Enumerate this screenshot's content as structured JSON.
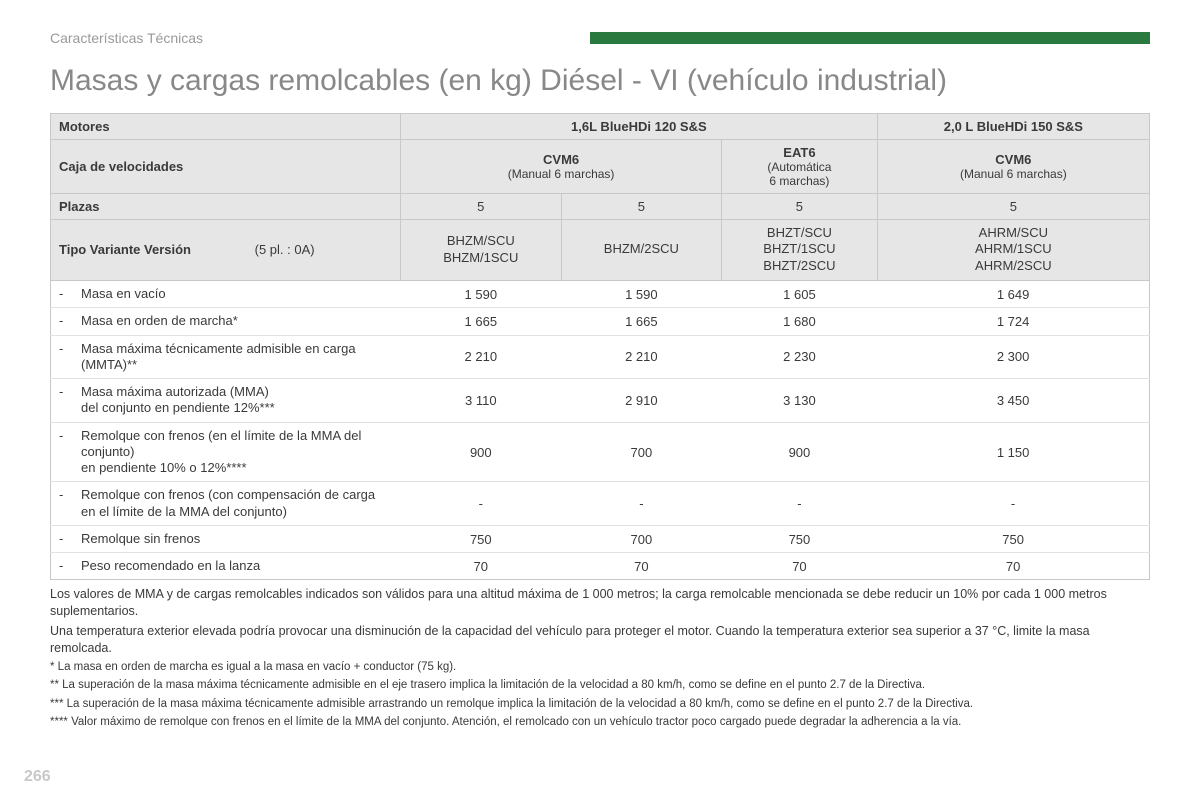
{
  "header": {
    "section_label": "Características Técnicas",
    "green_bar_color": "#2a7a3f"
  },
  "title": "Masas y cargas remolcables (en kg) Diésel - VI (vehículo industrial)",
  "table": {
    "row_labels": {
      "motores": "Motores",
      "caja": "Caja de velocidades",
      "plazas": "Plazas",
      "tvv": "Tipo Variante Versión",
      "tvv_note": "(5 pl. : 0A)"
    },
    "engines": [
      {
        "name": "1,6L BlueHDi 120 S&S",
        "span": 3
      },
      {
        "name": "2,0 L BlueHDi 150 S&S",
        "span": 1
      }
    ],
    "gearboxes": [
      {
        "name": "CVM6",
        "sub": "(Manual 6 marchas)",
        "span": 2
      },
      {
        "name": "EAT6",
        "sub": "(Automática\n6 marchas)",
        "span": 1
      },
      {
        "name": "CVM6",
        "sub": "(Manual 6 marchas)",
        "span": 1
      }
    ],
    "plazas": [
      "5",
      "5",
      "5",
      "5"
    ],
    "tvv": [
      "BHZM/SCU\nBHZM/1SCU",
      "BHZM/2SCU",
      "BHZT/SCU\nBHZT/1SCU\nBHZT/2SCU",
      "AHRM/SCU\nAHRM/1SCU\nAHRM/2SCU"
    ],
    "body_rows": [
      {
        "label": "Masa en vacío",
        "vals": [
          "1 590",
          "1 590",
          "1 605",
          "1 649"
        ]
      },
      {
        "label": "Masa en orden de marcha*",
        "vals": [
          "1 665",
          "1 665",
          "1 680",
          "1 724"
        ]
      },
      {
        "label": "Masa máxima técnicamente admisible en carga (MMTA)**",
        "vals": [
          "2 210",
          "2 210",
          "2 230",
          "2 300"
        ]
      },
      {
        "label": "Masa máxima autorizada (MMA)\ndel conjunto en pendiente 12%***",
        "vals": [
          "3 110",
          "2 910",
          "3 130",
          "3 450"
        ]
      },
      {
        "label": "Remolque con frenos (en el límite de la MMA del conjunto)\nen pendiente 10% o 12%****",
        "vals": [
          "900",
          "700",
          "900",
          "1 150"
        ]
      },
      {
        "label": "Remolque con frenos (con compensación de carga en el límite de la MMA del conjunto)",
        "vals": [
          "-",
          "-",
          "-",
          "-"
        ]
      },
      {
        "label": "Remolque sin frenos",
        "vals": [
          "750",
          "700",
          "750",
          "750"
        ]
      },
      {
        "label": "Peso recomendado en la lanza",
        "vals": [
          "70",
          "70",
          "70",
          "70"
        ]
      }
    ]
  },
  "notes": {
    "p1": "Los valores de MMA y de cargas remolcables indicados son válidos para una altitud máxima de 1 000 metros; la carga remolcable mencionada se debe reducir un 10% por cada 1 000 metros suplementarios.",
    "p2": "Una temperatura exterior elevada podría provocar una disminución de la capacidad del vehículo para proteger el motor. Cuando la temperatura exterior sea superior a 37 °C, limite la masa remolcada.",
    "f1": "* La masa en orden de marcha es igual a la masa en vacío + conductor (75 kg).",
    "f2": "** La superación de la masa máxima técnicamente admisible en el eje trasero implica la limitación de la velocidad a 80 km/h, como se define en el punto 2.7 de la Directiva.",
    "f3": "*** La superación de la masa máxima técnicamente admisible arrastrando un remolque implica la limitación de la velocidad a 80 km/h, como se define en el punto 2.7 de la Directiva.",
    "f4": "**** Valor máximo de remolque con frenos en el límite de la MMA del conjunto. Atención, el remolcado con un vehículo tractor poco cargado puede degradar la adherencia a la vía."
  },
  "page_number": "266"
}
